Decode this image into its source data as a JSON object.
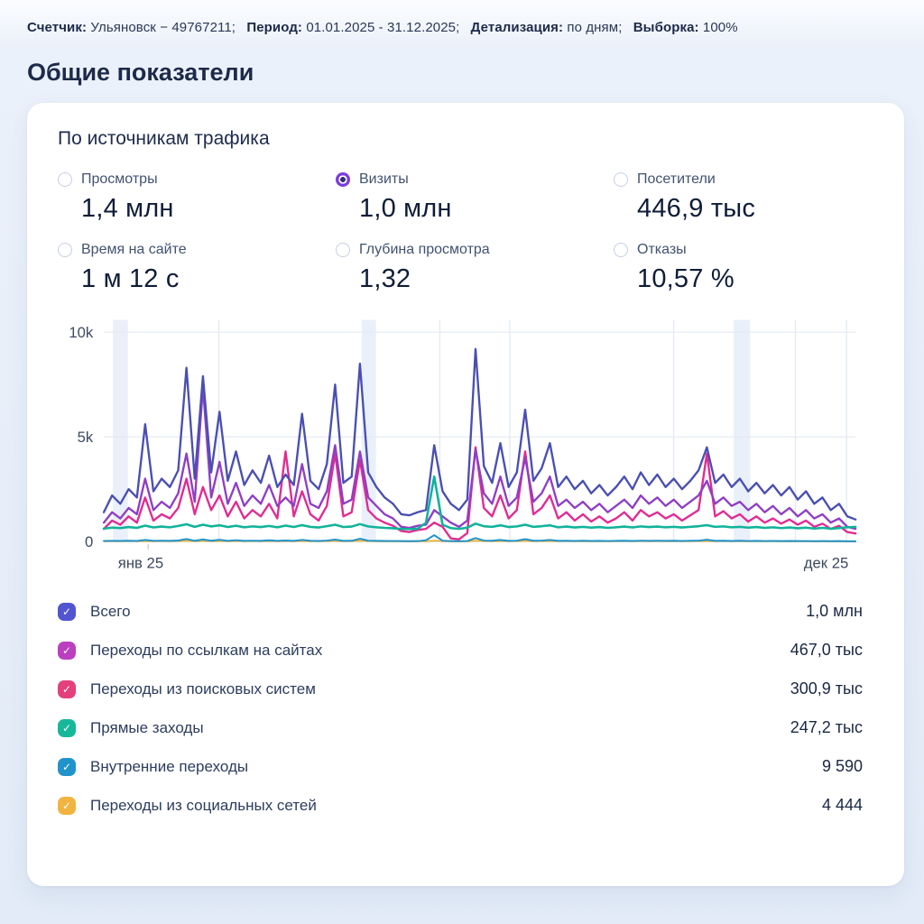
{
  "header": {
    "items": [
      {
        "label": "Счетчик:",
        "value": "Ульяновск − 49767211;"
      },
      {
        "label": "Период:",
        "value": "01.01.2025 - 31.12.2025;"
      },
      {
        "label": "Детализация:",
        "value": "по дням;"
      },
      {
        "label": "Выборка:",
        "value": "100%"
      }
    ]
  },
  "page_title": "Общие показатели",
  "card": {
    "title": "По источникам трафика"
  },
  "icons": {
    "check": "✓"
  },
  "metrics": [
    {
      "label": "Просмотры",
      "value": "1,4 млн",
      "selected": false
    },
    {
      "label": "Визиты",
      "value": "1,0 млн",
      "selected": true
    },
    {
      "label": "Посетители",
      "value": "446,9 тыс",
      "selected": false
    },
    {
      "label": "Время на сайте",
      "value": "1 м 12 с",
      "selected": false
    },
    {
      "label": "Глубина просмотра",
      "value": "1,32",
      "selected": false
    },
    {
      "label": "Отказы",
      "value": "10,57 %",
      "selected": false
    }
  ],
  "legend": [
    {
      "label": "Всего",
      "value": "1,0 млн",
      "color": "#5155cf"
    },
    {
      "label": "Переходы по ссылкам на сайтах",
      "value": "467,0 тыс",
      "color": "#ba40c0"
    },
    {
      "label": "Переходы из поисковых систем",
      "value": "300,9 тыс",
      "color": "#e5407e"
    },
    {
      "label": "Прямые заходы",
      "value": "247,2 тыс",
      "color": "#17b89a"
    },
    {
      "label": "Внутренние переходы",
      "value": "9 590",
      "color": "#2093cb"
    },
    {
      "label": "Переходы из социальных сетей",
      "value": "4 444",
      "color": "#f1b440"
    }
  ],
  "chart_data": {
    "type": "line",
    "ylim": [
      0,
      10000
    ],
    "yticks": [
      {
        "v": 0,
        "label": "0"
      },
      {
        "v": 5000,
        "label": "5k"
      },
      {
        "v": 10000,
        "label": "10k"
      }
    ],
    "x_range": [
      "янв 25",
      "дек 25"
    ],
    "grid": {
      "bands": [
        [
          0.012,
          0.032
        ],
        [
          0.343,
          0.362
        ],
        [
          0.838,
          0.86
        ]
      ],
      "vlines": [
        0.153,
        0.447,
        0.54,
        0.758,
        0.92,
        0.988
      ]
    },
    "draw_order": [
      5,
      4,
      2,
      1,
      0,
      3
    ],
    "line_widths": [
      2.4,
      2.4,
      2.4,
      2.6,
      2.0,
      2.0
    ],
    "series": [
      {
        "name": "Всего",
        "color": "#4a4fb2",
        "values": [
          1400,
          2200,
          1800,
          2500,
          2100,
          5600,
          2400,
          3000,
          2600,
          3400,
          8300,
          3000,
          7900,
          3300,
          6200,
          2900,
          4300,
          2700,
          3400,
          2800,
          4100,
          2600,
          3200,
          2700,
          6100,
          2900,
          2500,
          3700,
          7500,
          2800,
          3100,
          8500,
          3300,
          2600,
          2100,
          1800,
          1300,
          1250,
          1400,
          1500,
          4600,
          2400,
          1800,
          1500,
          2000,
          9200,
          3600,
          2800,
          4700,
          2600,
          3300,
          6300,
          2900,
          3500,
          4700,
          2600,
          3100,
          2500,
          2900,
          2300,
          2700,
          2200,
          2600,
          3100,
          2500,
          3300,
          2700,
          3200,
          2600,
          3000,
          2500,
          2900,
          3400,
          4500,
          2800,
          3200,
          2600,
          3000,
          2400,
          2800,
          2300,
          2700,
          2200,
          2600,
          2000,
          2400,
          1800,
          2100,
          1500,
          1800,
          1200,
          1050
        ]
      },
      {
        "name": "Переходы по ссылкам на сайтах",
        "color": "#8e3fc4",
        "values": [
          900,
          1400,
          1100,
          1600,
          1300,
          3000,
          1500,
          1900,
          1600,
          2300,
          4200,
          1900,
          7400,
          2100,
          3800,
          1800,
          2800,
          1700,
          2200,
          1800,
          2700,
          1700,
          2100,
          1700,
          3700,
          1800,
          1600,
          2400,
          4600,
          1800,
          2000,
          4300,
          2100,
          1700,
          1300,
          1100,
          700,
          650,
          750,
          800,
          1500,
          1200,
          900,
          700,
          1000,
          4400,
          2300,
          1800,
          3100,
          1700,
          2100,
          4000,
          1900,
          2300,
          3100,
          1700,
          2000,
          1600,
          1900,
          1500,
          1800,
          1400,
          1700,
          2000,
          1600,
          2200,
          1800,
          2100,
          1700,
          2000,
          1600,
          1900,
          2200,
          2900,
          1800,
          2100,
          1700,
          1900,
          1500,
          1800,
          1400,
          1700,
          1300,
          1600,
          1200,
          1500,
          1100,
          1300,
          900,
          1100,
          700,
          600
        ]
      },
      {
        "name": "Переходы из поисковых систем",
        "color": "#e02b93",
        "values": [
          600,
          1000,
          800,
          1200,
          900,
          2100,
          1000,
          1300,
          1100,
          1600,
          3000,
          1300,
          2600,
          1500,
          2200,
          1200,
          1900,
          1100,
          1500,
          1200,
          1800,
          1100,
          4300,
          1200,
          2400,
          1300,
          1000,
          1700,
          4200,
          1200,
          1400,
          3900,
          1500,
          1100,
          900,
          750,
          500,
          450,
          550,
          600,
          900,
          700,
          150,
          100,
          400,
          4500,
          1600,
          1200,
          2200,
          1100,
          1500,
          4300,
          1300,
          1600,
          2200,
          1100,
          1400,
          1000,
          1300,
          950,
          1200,
          900,
          1100,
          1400,
          1000,
          1500,
          1200,
          1400,
          1100,
          1300,
          1000,
          1250,
          1500,
          4200,
          1200,
          1450,
          1100,
          1300,
          950,
          1200,
          900,
          1100,
          850,
          1050,
          800,
          1000,
          700,
          850,
          600,
          750,
          450,
          380
        ]
      },
      {
        "name": "Прямые заходы",
        "color": "#10b39a",
        "values": [
          620,
          660,
          640,
          690,
          650,
          760,
          670,
          710,
          680,
          740,
          820,
          700,
          800,
          720,
          770,
          690,
          750,
          680,
          720,
          690,
          740,
          680,
          760,
          690,
          780,
          700,
          670,
          730,
          800,
          690,
          710,
          830,
          720,
          680,
          650,
          630,
          600,
          590,
          610,
          900,
          3100,
          800,
          640,
          600,
          660,
          850,
          730,
          700,
          770,
          690,
          720,
          800,
          700,
          730,
          770,
          680,
          710,
          670,
          700,
          660,
          690,
          650,
          680,
          710,
          670,
          720,
          690,
          710,
          680,
          700,
          670,
          700,
          730,
          780,
          700,
          720,
          680,
          700,
          660,
          690,
          650,
          680,
          640,
          670,
          630,
          660,
          620,
          650,
          610,
          640,
          680,
          700
        ]
      },
      {
        "name": "Внутренние переходы",
        "color": "#2093cb",
        "values": [
          25,
          30,
          26,
          32,
          27,
          70,
          28,
          38,
          30,
          45,
          120,
          32,
          95,
          36,
          80,
          30,
          60,
          28,
          40,
          30,
          55,
          28,
          48,
          30,
          75,
          32,
          26,
          42,
          90,
          30,
          36,
          130,
          38,
          28,
          24,
          20,
          15,
          14,
          16,
          60,
          300,
          40,
          18,
          14,
          22,
          160,
          44,
          34,
          70,
          30,
          40,
          110,
          34,
          42,
          70,
          28,
          36,
          26,
          34,
          24,
          30,
          22,
          28,
          36,
          26,
          38,
          30,
          36,
          28,
          34,
          26,
          32,
          40,
          85,
          30,
          36,
          26,
          32,
          22,
          28,
          20,
          26,
          18,
          24,
          16,
          22,
          14,
          18,
          12,
          16,
          10,
          9
        ]
      },
      {
        "name": "Переходы из социальных сетей",
        "color": "#f0b43c",
        "values": [
          12,
          14,
          12,
          15,
          12,
          25,
          13,
          16,
          13,
          18,
          35,
          14,
          30,
          15,
          26,
          13,
          22,
          12,
          16,
          13,
          20,
          12,
          18,
          13,
          24,
          14,
          11,
          17,
          28,
          13,
          15,
          36,
          16,
          12,
          10,
          9,
          7,
          6,
          8,
          14,
          40,
          15,
          8,
          6,
          10,
          38,
          17,
          14,
          22,
          12,
          16,
          32,
          14,
          17,
          22,
          12,
          15,
          11,
          14,
          10,
          13,
          10,
          12,
          15,
          11,
          16,
          13,
          15,
          12,
          14,
          11,
          13,
          16,
          24,
          12,
          15,
          11,
          13,
          9,
          12,
          8,
          11,
          8,
          10,
          7,
          9,
          6,
          8,
          5,
          7,
          4,
          4
        ]
      }
    ]
  }
}
